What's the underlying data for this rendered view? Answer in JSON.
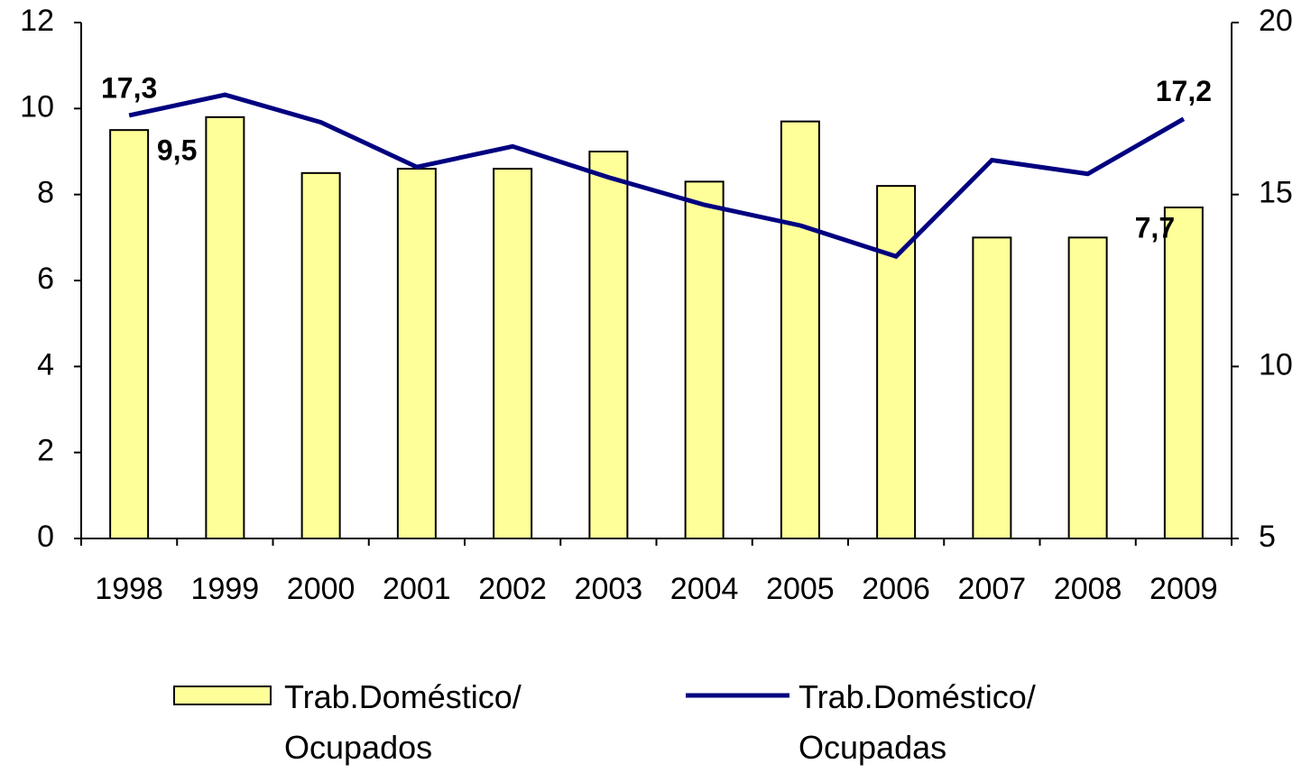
{
  "chart_data": {
    "type": "bar_line",
    "categories": [
      "1998",
      "1999",
      "2000",
      "2001",
      "2002",
      "2003",
      "2004",
      "2005",
      "2006",
      "2007",
      "2008",
      "2009"
    ],
    "series": [
      {
        "name": "Trab.Doméstico/ Ocupados",
        "type": "bar",
        "color": "#ffff99",
        "values": [
          9.5,
          9.8,
          8.5,
          8.6,
          8.6,
          9.0,
          8.3,
          9.7,
          8.2,
          7.0,
          7.0,
          7.7
        ],
        "value_labels": [
          "9,5",
          null,
          null,
          null,
          null,
          null,
          null,
          null,
          null,
          null,
          null,
          "7,7"
        ]
      },
      {
        "name": "Trab.Doméstico/ Ocupadas",
        "type": "line",
        "color": "#000080",
        "axis": "y2",
        "values": [
          17.3,
          17.9,
          17.1,
          15.8,
          16.4,
          15.5,
          14.7,
          14.1,
          13.2,
          16.0,
          15.6,
          17.2
        ],
        "value_labels": [
          "17,3",
          null,
          null,
          null,
          null,
          null,
          null,
          null,
          null,
          null,
          null,
          "17,2"
        ]
      }
    ],
    "ylim": [
      0,
      12
    ],
    "yticks": [
      0,
      2,
      4,
      6,
      8,
      10,
      12
    ],
    "y2lim": [
      5,
      20
    ],
    "y2ticks": [
      5,
      10,
      15,
      20
    ],
    "grid": false,
    "legend": "bottom"
  }
}
